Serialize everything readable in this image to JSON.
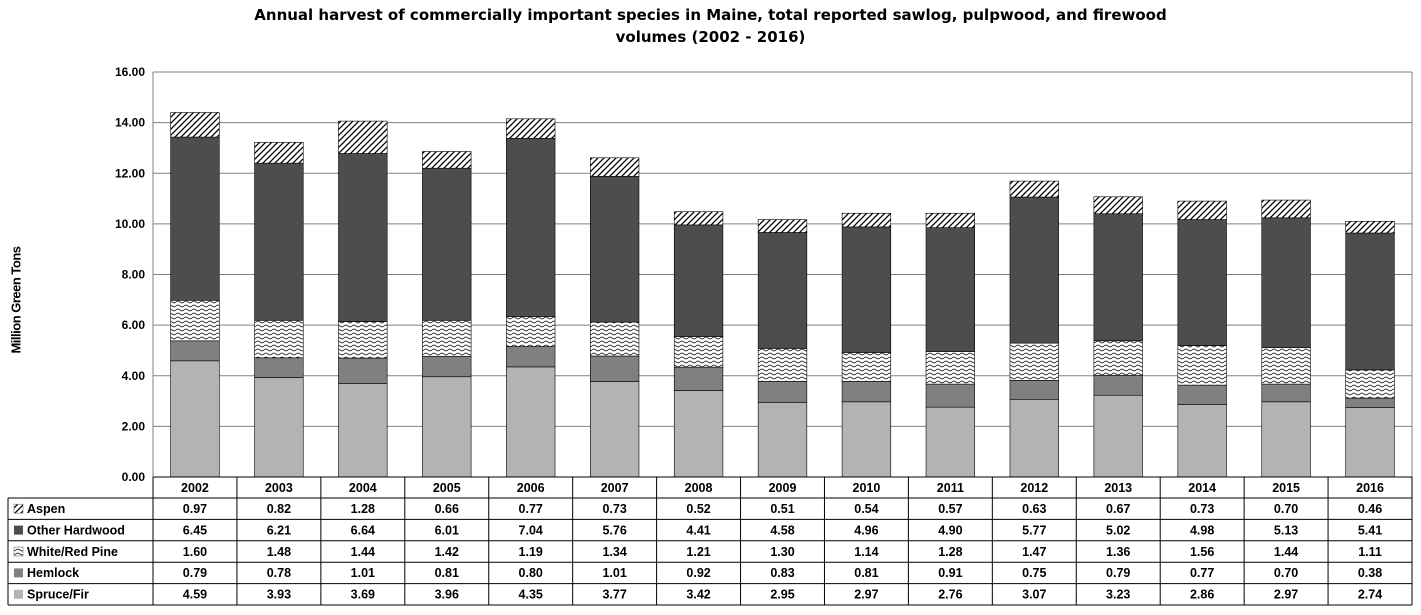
{
  "chart_data": {
    "type": "bar",
    "stacked": true,
    "title_line1": "Annual harvest of commercially important  species in Maine, total reported sawlog, pulpwood, and firewood",
    "title_line2": "volumes (2002 - 2016)",
    "ylabel": "Million Green Tons",
    "xlabel": "",
    "ylim": [
      0,
      16
    ],
    "yticks": [
      "0.00",
      "2.00",
      "4.00",
      "6.00",
      "8.00",
      "10.00",
      "12.00",
      "14.00",
      "16.00"
    ],
    "grid": true,
    "legend": "data table below chart",
    "categories": [
      "2002",
      "2003",
      "2004",
      "2005",
      "2006",
      "2007",
      "2008",
      "2009",
      "2010",
      "2011",
      "2012",
      "2013",
      "2014",
      "2015",
      "2016"
    ],
    "series": [
      {
        "name": "Spruce/Fir",
        "color": "#b3b3b3",
        "pattern": "solid",
        "values": [
          4.59,
          3.93,
          3.69,
          3.96,
          4.35,
          3.77,
          3.42,
          2.95,
          2.97,
          2.76,
          3.07,
          3.23,
          2.86,
          2.97,
          2.74
        ],
        "labels": [
          "4.59",
          "3.93",
          "3.69",
          "3.96",
          "4.35",
          "3.77",
          "3.42",
          "2.95",
          "2.97",
          "2.76",
          "3.07",
          "3.23",
          "2.86",
          "2.97",
          "2.74"
        ]
      },
      {
        "name": "Hemlock",
        "color": "#808080",
        "pattern": "solid",
        "values": [
          0.79,
          0.78,
          1.01,
          0.81,
          0.8,
          1.01,
          0.92,
          0.83,
          0.81,
          0.91,
          0.75,
          0.79,
          0.77,
          0.7,
          0.38
        ],
        "labels": [
          "0.79",
          "0.78",
          "1.01",
          "0.81",
          "0.80",
          "1.01",
          "0.92",
          "0.83",
          "0.81",
          "0.91",
          "0.75",
          "0.79",
          "0.77",
          "0.70",
          "0.38"
        ]
      },
      {
        "name": "White/Red Pine",
        "color": "#ffffff",
        "pattern": "wave",
        "values": [
          1.6,
          1.48,
          1.44,
          1.42,
          1.19,
          1.34,
          1.21,
          1.3,
          1.14,
          1.28,
          1.47,
          1.36,
          1.56,
          1.44,
          1.11
        ],
        "labels": [
          "1.60",
          "1.48",
          "1.44",
          "1.42",
          "1.19",
          "1.34",
          "1.21",
          "1.30",
          "1.14",
          "1.28",
          "1.47",
          "1.36",
          "1.56",
          "1.44",
          "1.11"
        ]
      },
      {
        "name": "Other Hardwood",
        "color": "#4d4d4d",
        "pattern": "solid",
        "values": [
          6.45,
          6.21,
          6.64,
          6.01,
          7.04,
          5.76,
          4.41,
          4.58,
          4.96,
          4.9,
          5.77,
          5.02,
          4.98,
          5.13,
          5.41
        ],
        "labels": [
          "6.45",
          "6.21",
          "6.64",
          "6.01",
          "7.04",
          "5.76",
          "4.41",
          "4.58",
          "4.96",
          "4.90",
          "5.77",
          "5.02",
          "4.98",
          "5.13",
          "5.41"
        ]
      },
      {
        "name": "Aspen",
        "color": "#ffffff",
        "pattern": "diagonal",
        "values": [
          0.97,
          0.82,
          1.28,
          0.66,
          0.77,
          0.73,
          0.52,
          0.51,
          0.54,
          0.57,
          0.63,
          0.67,
          0.73,
          0.7,
          0.46
        ],
        "labels": [
          "0.97",
          "0.82",
          "1.28",
          "0.66",
          "0.77",
          "0.73",
          "0.52",
          "0.51",
          "0.54",
          "0.57",
          "0.63",
          "0.67",
          "0.73",
          "0.70",
          "0.46"
        ]
      }
    ],
    "table_row_order": [
      "Aspen",
      "Other Hardwood",
      "White/Red Pine",
      "Hemlock",
      "Spruce/Fir"
    ]
  }
}
